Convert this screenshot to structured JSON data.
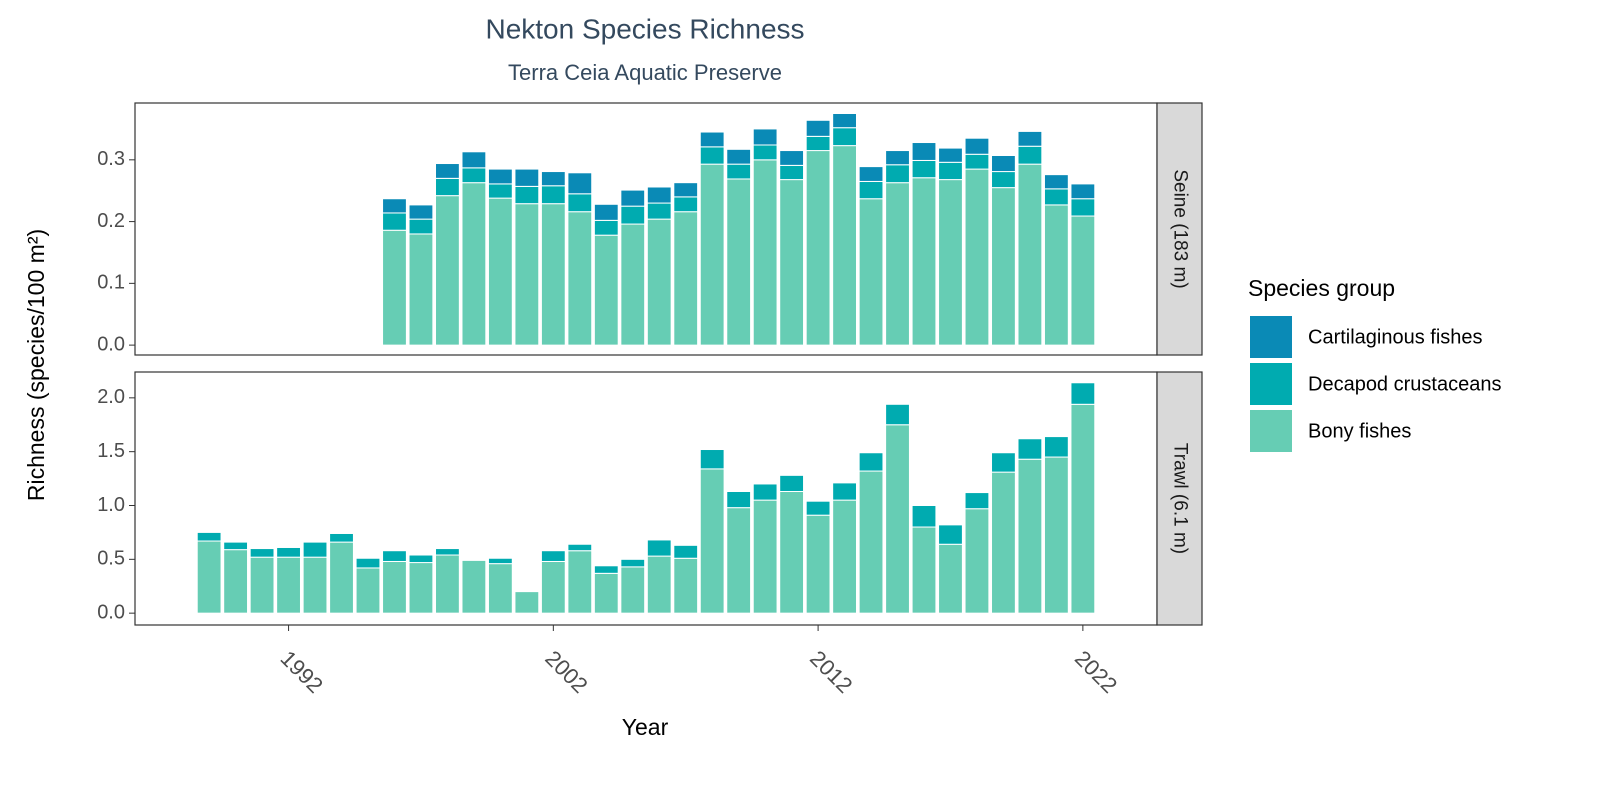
{
  "chart_data": {
    "type": "bar",
    "stacked": true,
    "title": "Nekton Species Richness",
    "subtitle": "Terra Ceia Aquatic Preserve",
    "x_label": "Year",
    "y_label": "Richness (species/100 m²)",
    "legend_title": "Species group",
    "legend_position": "right",
    "xlim": [
      1986.2,
      2024.8
    ],
    "xticks": [
      1992,
      2002,
      2012,
      2022
    ],
    "series": [
      {
        "name": "Cartilaginous fishes",
        "color": "#0a8ab6"
      },
      {
        "name": "Decapod crustaceans",
        "color": "#00abb0"
      },
      {
        "name": "Bony fishes",
        "color": "#66cdb4"
      }
    ],
    "facets": [
      {
        "label": "Seine (183 m)",
        "x": [
          1996,
          1997,
          1998,
          1999,
          2000,
          2001,
          2002,
          2003,
          2004,
          2005,
          2006,
          2007,
          2008,
          2009,
          2010,
          2011,
          2012,
          2013,
          2014,
          2015,
          2016,
          2017,
          2018,
          2019,
          2020,
          2021,
          2022
        ],
        "ylim": [
          -0.016,
          0.392
        ],
        "yticks": [
          {
            "value": 0,
            "label": "0.0"
          },
          0.1,
          0.2,
          0.3
        ],
        "values": [
          [
            0.023,
            0.023,
            0.024,
            0.026,
            0.024,
            0.028,
            0.023,
            0.034,
            0.026,
            0.026,
            0.026,
            0.023,
            0.024,
            0.024,
            0.026,
            0.024,
            0.026,
            0.023,
            0.024,
            0.023,
            0.029,
            0.023,
            0.026,
            0.026,
            0.024,
            0.023,
            0.024
          ],
          [
            0.028,
            0.024,
            0.028,
            0.024,
            0.023,
            0.028,
            0.029,
            0.029,
            0.024,
            0.029,
            0.026,
            0.024,
            0.028,
            0.024,
            0.024,
            0.023,
            0.023,
            0.029,
            0.028,
            0.029,
            0.028,
            0.028,
            0.024,
            0.026,
            0.029,
            0.026,
            0.028
          ],
          [
            0.186,
            0.18,
            0.242,
            0.263,
            0.238,
            0.229,
            0.229,
            0.216,
            0.178,
            0.196,
            0.204,
            0.216,
            0.293,
            0.269,
            0.3,
            0.268,
            0.315,
            0.323,
            0.237,
            0.263,
            0.271,
            0.268,
            0.285,
            0.255,
            0.293,
            0.227,
            0.209
          ]
        ]
      },
      {
        "label": "Trawl (6.1 m)",
        "x": [
          1989,
          1990,
          1991,
          1992,
          1993,
          1994,
          1995,
          1996,
          1997,
          1998,
          1999,
          2000,
          2001,
          2002,
          2003,
          2004,
          2005,
          2006,
          2007,
          2008,
          2009,
          2010,
          2011,
          2012,
          2013,
          2014,
          2015,
          2016,
          2017,
          2018,
          2019,
          2020,
          2021,
          2022
        ],
        "ylim": [
          -0.11,
          2.24
        ],
        "yticks": [
          {
            "value": 0,
            "label": "0.0"
          },
          0.5,
          {
            "value": 1,
            "label": "1.0"
          },
          1.5,
          {
            "value": 2,
            "label": "2.0"
          }
        ],
        "values": [
          [
            0,
            0,
            0,
            0,
            0,
            0,
            0,
            0,
            0,
            0,
            0,
            0,
            0,
            0,
            0,
            0,
            0,
            0,
            0,
            0,
            0,
            0,
            0,
            0,
            0,
            0,
            0,
            0,
            0,
            0,
            0,
            0,
            0,
            0
          ],
          [
            0.08,
            0.07,
            0.08,
            0.09,
            0.14,
            0.08,
            0.09,
            0.1,
            0.07,
            0.06,
            0,
            0.05,
            0,
            0.1,
            0.06,
            0.07,
            0.07,
            0.15,
            0.12,
            0.18,
            0.15,
            0.15,
            0.15,
            0.13,
            0.16,
            0.17,
            0.19,
            0.2,
            0.18,
            0.15,
            0.18,
            0.19,
            0.19,
            0.2
          ],
          [
            0.67,
            0.59,
            0.52,
            0.52,
            0.52,
            0.66,
            0.42,
            0.48,
            0.47,
            0.54,
            0.49,
            0.46,
            0.2,
            0.48,
            0.58,
            0.37,
            0.43,
            0.53,
            0.51,
            1.34,
            0.98,
            1.05,
            1.13,
            0.91,
            1.05,
            1.32,
            1.75,
            0.8,
            0.64,
            0.97,
            1.31,
            1.43,
            1.45,
            1.94
          ]
        ]
      }
    ]
  }
}
